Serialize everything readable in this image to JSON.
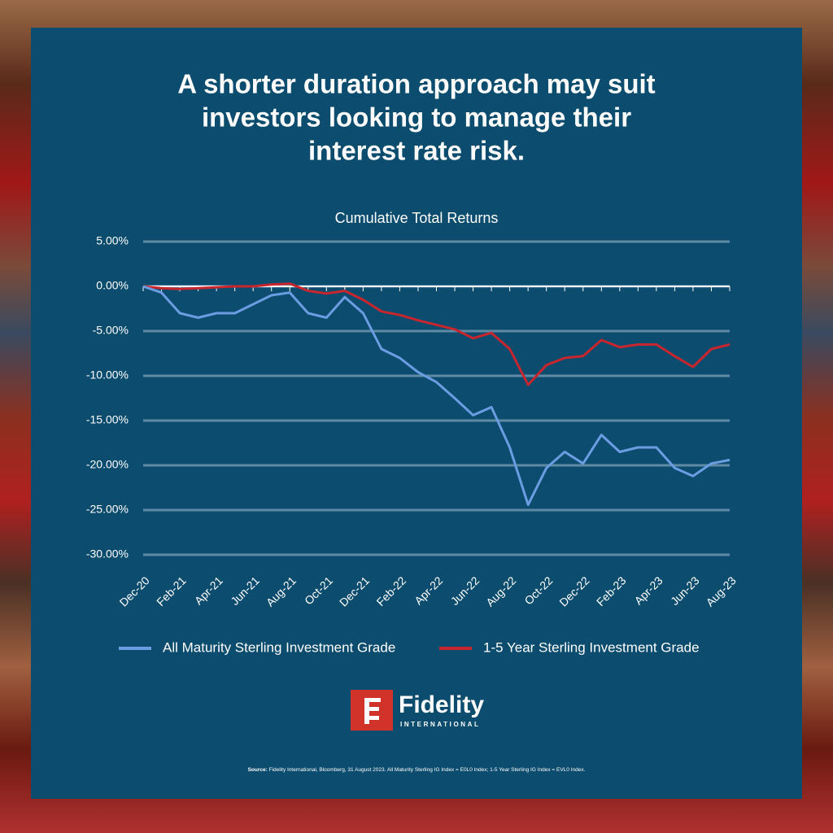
{
  "headline": [
    "A shorter duration approach may suit",
    "investors looking to manage their",
    "interest rate risk."
  ],
  "chart_data": {
    "type": "line",
    "title": "Cumulative Total Returns",
    "categories": [
      "Dec-20",
      null,
      "Feb-21",
      null,
      "Apr-21",
      null,
      "Jun-21",
      null,
      "Aug-21",
      null,
      "Oct-21",
      null,
      "Dec-21",
      null,
      "Feb-22",
      null,
      "Apr-22",
      null,
      "Jun-22",
      null,
      "Aug-22",
      null,
      "Oct-22",
      null,
      "Dec-22",
      null,
      "Feb-23",
      null,
      "Apr-23",
      null,
      "Jun-23",
      null,
      "Aug-23"
    ],
    "series": [
      {
        "name": "All Maturity Sterling Investment Grade",
        "color": "#6b9de2",
        "values": [
          0,
          -0.7,
          -3,
          -3.5,
          -3,
          -3,
          -2,
          -1,
          -0.7,
          -3,
          -3.5,
          -1.2,
          -3,
          -7,
          -8,
          -9.6,
          -10.7,
          -12.5,
          -14.4,
          -13.5,
          -18,
          -24.4,
          -20.3,
          -18.5,
          -19.8,
          -16.6,
          -18.5,
          -18,
          -18,
          -20.3,
          -21.2,
          -19.8,
          -19.4
        ]
      },
      {
        "name": "1-5 Year Sterling Investment Grade",
        "color": "#c8262e",
        "values": [
          0,
          -0.2,
          -0.3,
          -0.2,
          -0.1,
          0,
          0,
          0.2,
          0.3,
          -0.5,
          -0.8,
          -0.5,
          -1.5,
          -2.8,
          -3.2,
          -3.8,
          -4.3,
          -4.8,
          -5.8,
          -5.2,
          -7,
          -11,
          -8.8,
          -8,
          -7.8,
          -6,
          -6.8,
          -6.5,
          -6.5,
          -7.8,
          -9,
          -7,
          -6.5
        ]
      }
    ],
    "ylim": [
      -30,
      5
    ],
    "yticks": [
      {
        "value": 5,
        "label": "5.00%"
      },
      {
        "value": 0,
        "label": "0.00%"
      },
      {
        "value": -5,
        "label": "-5.00%"
      },
      {
        "value": -10,
        "label": "-10.00%"
      },
      {
        "value": -15,
        "label": "-15.00%"
      },
      {
        "value": -20,
        "label": "-20.00%"
      },
      {
        "value": -25,
        "label": "-25.00%"
      },
      {
        "value": -30,
        "label": "-30.00%"
      }
    ],
    "grid": true,
    "legend": "bottom"
  },
  "logo": {
    "name": "Fidelity",
    "subtitle": "INTERNATIONAL"
  },
  "source": {
    "label": "Source:",
    "text": "Fidelity International, Bloomberg, 31 August 2023. All Maturity Sterling IG Index = E0L0 Index; 1-5 Year Sterling IG Index = EVL0 Index."
  }
}
